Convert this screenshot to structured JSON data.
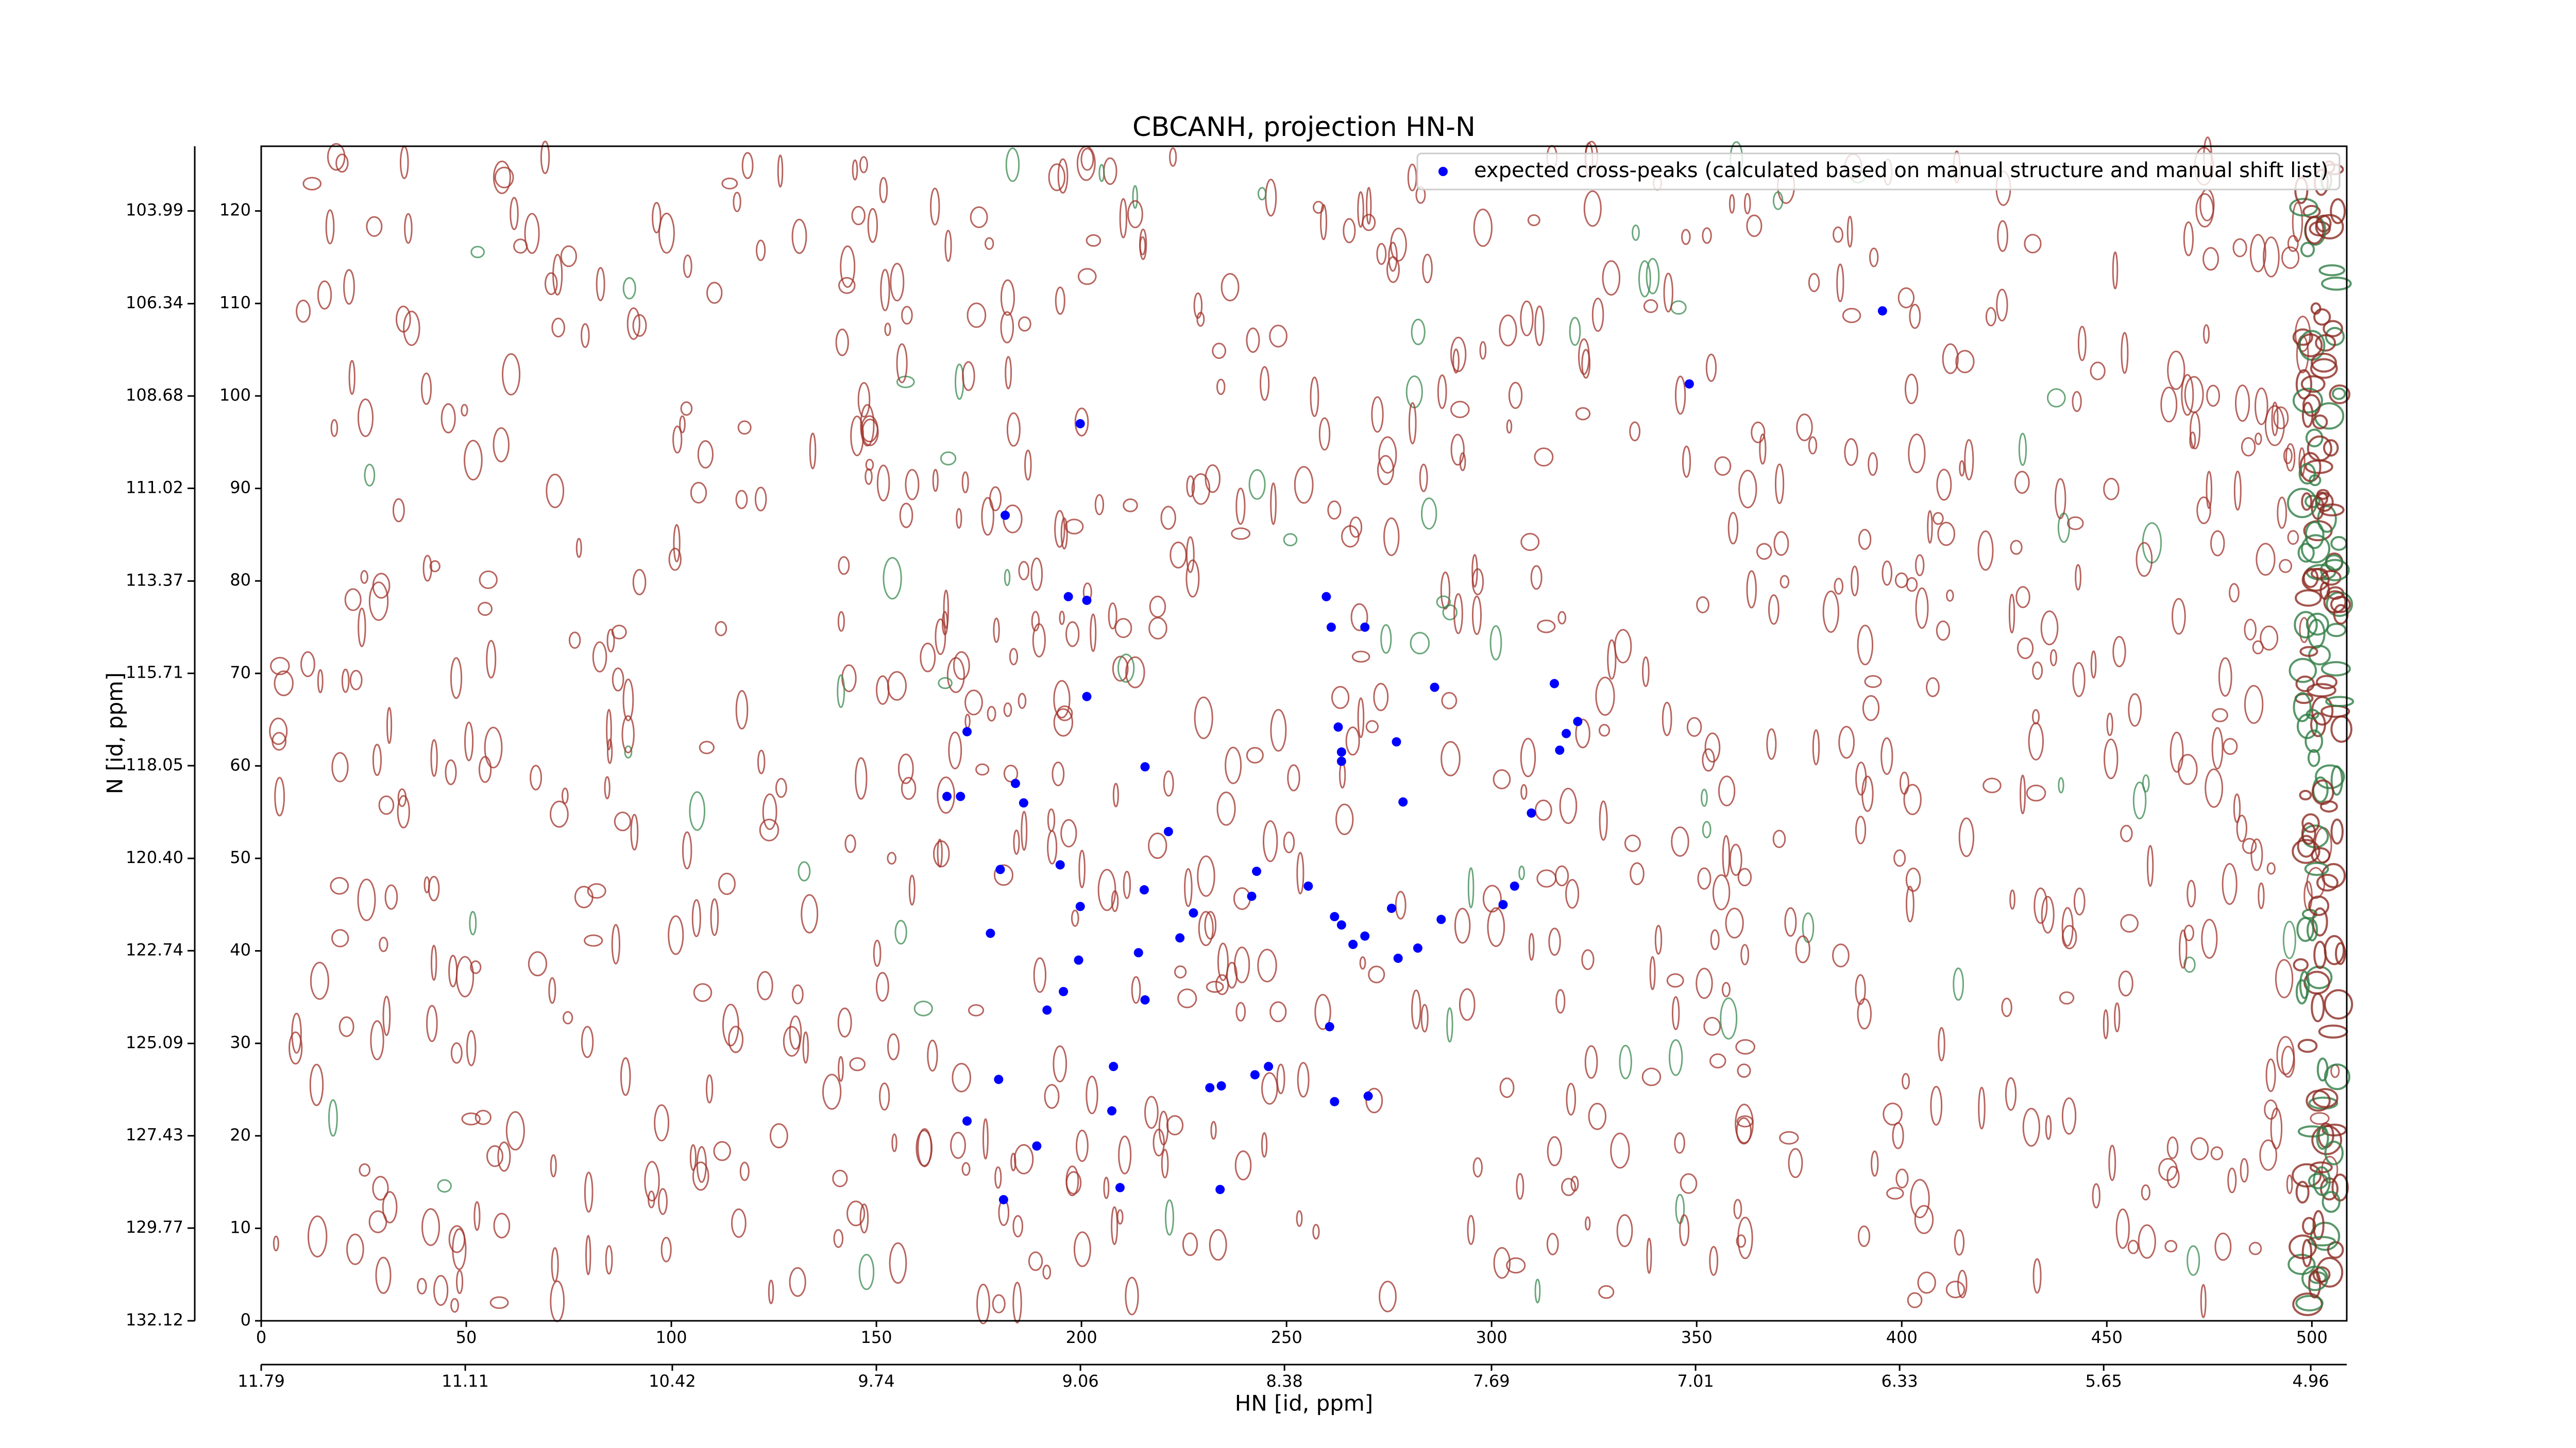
{
  "chart_data": {
    "type": "scatter",
    "title": "CBCANH, projection HN-N",
    "xlabel": "HN [id, ppm]",
    "ylabel": "N [id, ppm]",
    "legend": "upper right",
    "series": [
      {
        "name": "expected cross-peaks (calculated based on manual structure and manual shift list)",
        "color": "#0000ff",
        "x": [
          395.3,
          348.2,
          199.7,
          181.4,
          196.8,
          201.3,
          259.7,
          260.9,
          269.1,
          286.1,
          315.3,
          321.0,
          318.2,
          316.6,
          201.3,
          262.6,
          263.4,
          263.4,
          276.8,
          172.1,
          215.5,
          167.2,
          170.5,
          183.9,
          185.9,
          278.4,
          309.7,
          221.2,
          180.2,
          194.8,
          242.7,
          199.7,
          215.3,
          255.3,
          227.3,
          241.5,
          305.6,
          302.8,
          224.0,
          261.7,
          263.4,
          275.6,
          287.7,
          269.1,
          266.2,
          282.0,
          277.2,
          177.8,
          213.9,
          199.3,
          215.5,
          195.6,
          191.6,
          260.5,
          207.8,
          245.6,
          231.3,
          234.1,
          242.3,
          179.8,
          261.7,
          269.9,
          207.4,
          172.1,
          189.1,
          209.4,
          233.8,
          181.0
        ],
        "values": [
          109.2,
          101.3,
          97.0,
          87.1,
          78.3,
          77.9,
          78.3,
          75.0,
          75.0,
          68.5,
          68.9,
          64.8,
          63.5,
          61.7,
          67.5,
          64.2,
          61.5,
          60.5,
          62.6,
          63.7,
          59.9,
          56.7,
          56.7,
          58.1,
          56.0,
          56.1,
          54.9,
          52.9,
          48.8,
          49.3,
          48.6,
          44.8,
          46.6,
          47.0,
          44.1,
          45.9,
          47.0,
          45.0,
          41.4,
          43.7,
          42.8,
          44.6,
          43.4,
          41.6,
          40.7,
          40.3,
          39.2,
          41.9,
          39.8,
          39.0,
          34.7,
          35.6,
          33.6,
          31.8,
          27.5,
          27.5,
          25.2,
          25.4,
          26.6,
          26.1,
          23.7,
          24.3,
          22.7,
          21.6,
          18.9,
          14.4,
          14.2,
          13.1
        ]
      }
    ],
    "xlim": [
      0,
      508.5
    ],
    "xticks": [
      0,
      50,
      100,
      150,
      200,
      250,
      300,
      350,
      400,
      450,
      500
    ],
    "ylim": [
      0,
      127
    ],
    "yticks": [
      0,
      10,
      20,
      30,
      40,
      50,
      60,
      70,
      80,
      90,
      100,
      110,
      120
    ],
    "x2lim": [
      11.79,
      4.84
    ],
    "x2ticks": [
      11.79,
      11.11,
      10.42,
      9.74,
      9.06,
      8.38,
      7.69,
      7.01,
      6.33,
      5.65,
      4.96
    ],
    "y2lim": [
      132.12,
      102.35
    ],
    "y2ticks": [
      132.12,
      129.77,
      127.43,
      125.09,
      122.74,
      {
        "value": 120.4,
        "label": "120.40"
      },
      118.05,
      115.71,
      113.37,
      111.02,
      108.68,
      106.34,
      103.99
    ]
  }
}
